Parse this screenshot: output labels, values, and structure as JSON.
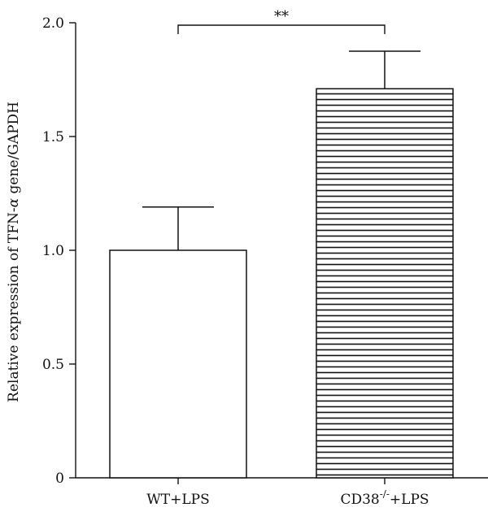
{
  "chart_data": {
    "type": "bar",
    "categories": [
      "WT+LPS",
      "CD38⁻/⁻+LPS"
    ],
    "category_labels": [
      {
        "main": "WT+LPS",
        "sup": "",
        "tail": ""
      },
      {
        "main": "CD38",
        "sup": "-/-",
        "tail": "+LPS"
      }
    ],
    "values": [
      1.0,
      1.71
    ],
    "error": [
      0.19,
      0.165
    ],
    "ylabel": {
      "pre": "Relative expression of TFN-",
      "greek": "α",
      "post": " gene/GAPDH"
    },
    "ylim": [
      0,
      2.0
    ],
    "yticks": [
      "0",
      "0.5",
      "1.0",
      "1.5",
      "2.0"
    ],
    "ytick_values": [
      0,
      0.5,
      1.0,
      1.5,
      2.0
    ],
    "bar_fills": [
      "none",
      "horizontal-stripes"
    ],
    "significance": {
      "label": "**",
      "between": [
        0,
        1
      ]
    },
    "grid": false,
    "legend": "none"
  },
  "colors": {
    "ink": "#111111",
    "background": "#ffffff"
  }
}
